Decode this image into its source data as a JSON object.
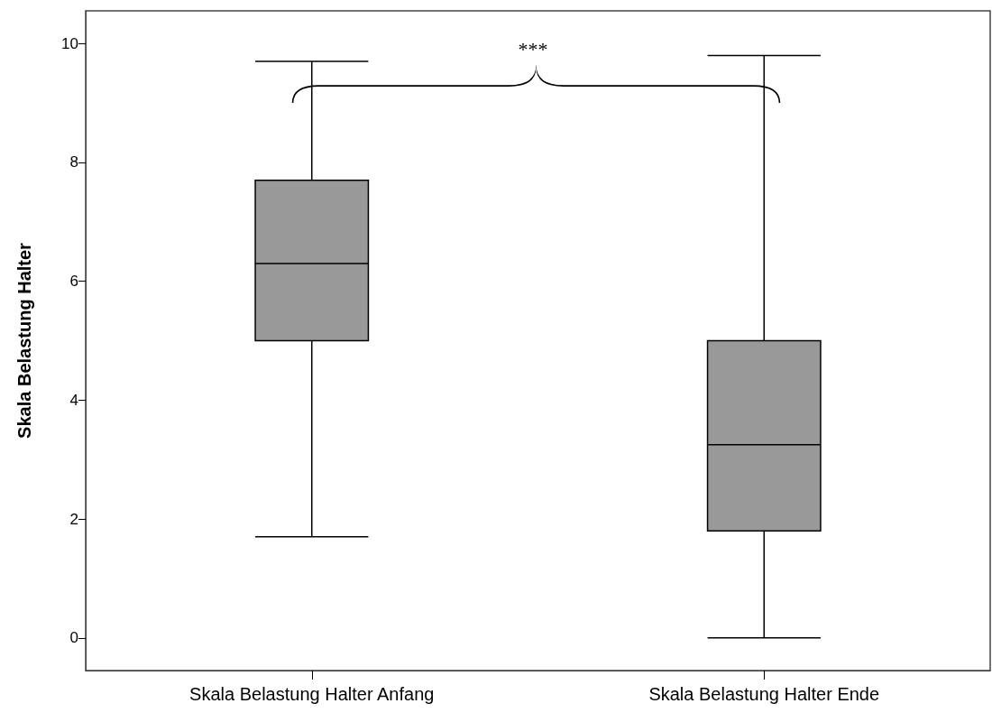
{
  "chart_data": {
    "type": "box",
    "ylabel": "Skala Belastung Halter",
    "categories": [
      "Skala Belastung Halter Anfang",
      "Skala Belastung Halter Ende"
    ],
    "series": [
      {
        "color": "#999999",
        "boxes": [
          {
            "low": 1.7,
            "q1": 5.0,
            "median": 6.3,
            "q3": 7.7,
            "high": 9.7
          },
          {
            "low": 0,
            "q1": 1.8,
            "median": 3.25,
            "q3": 5.0,
            "high": 9.8
          }
        ]
      }
    ],
    "ylim": [
      -0.55,
      10.55
    ],
    "yticks": [
      0,
      2,
      4,
      6,
      8,
      10
    ],
    "annotations": [
      "***"
    ]
  }
}
